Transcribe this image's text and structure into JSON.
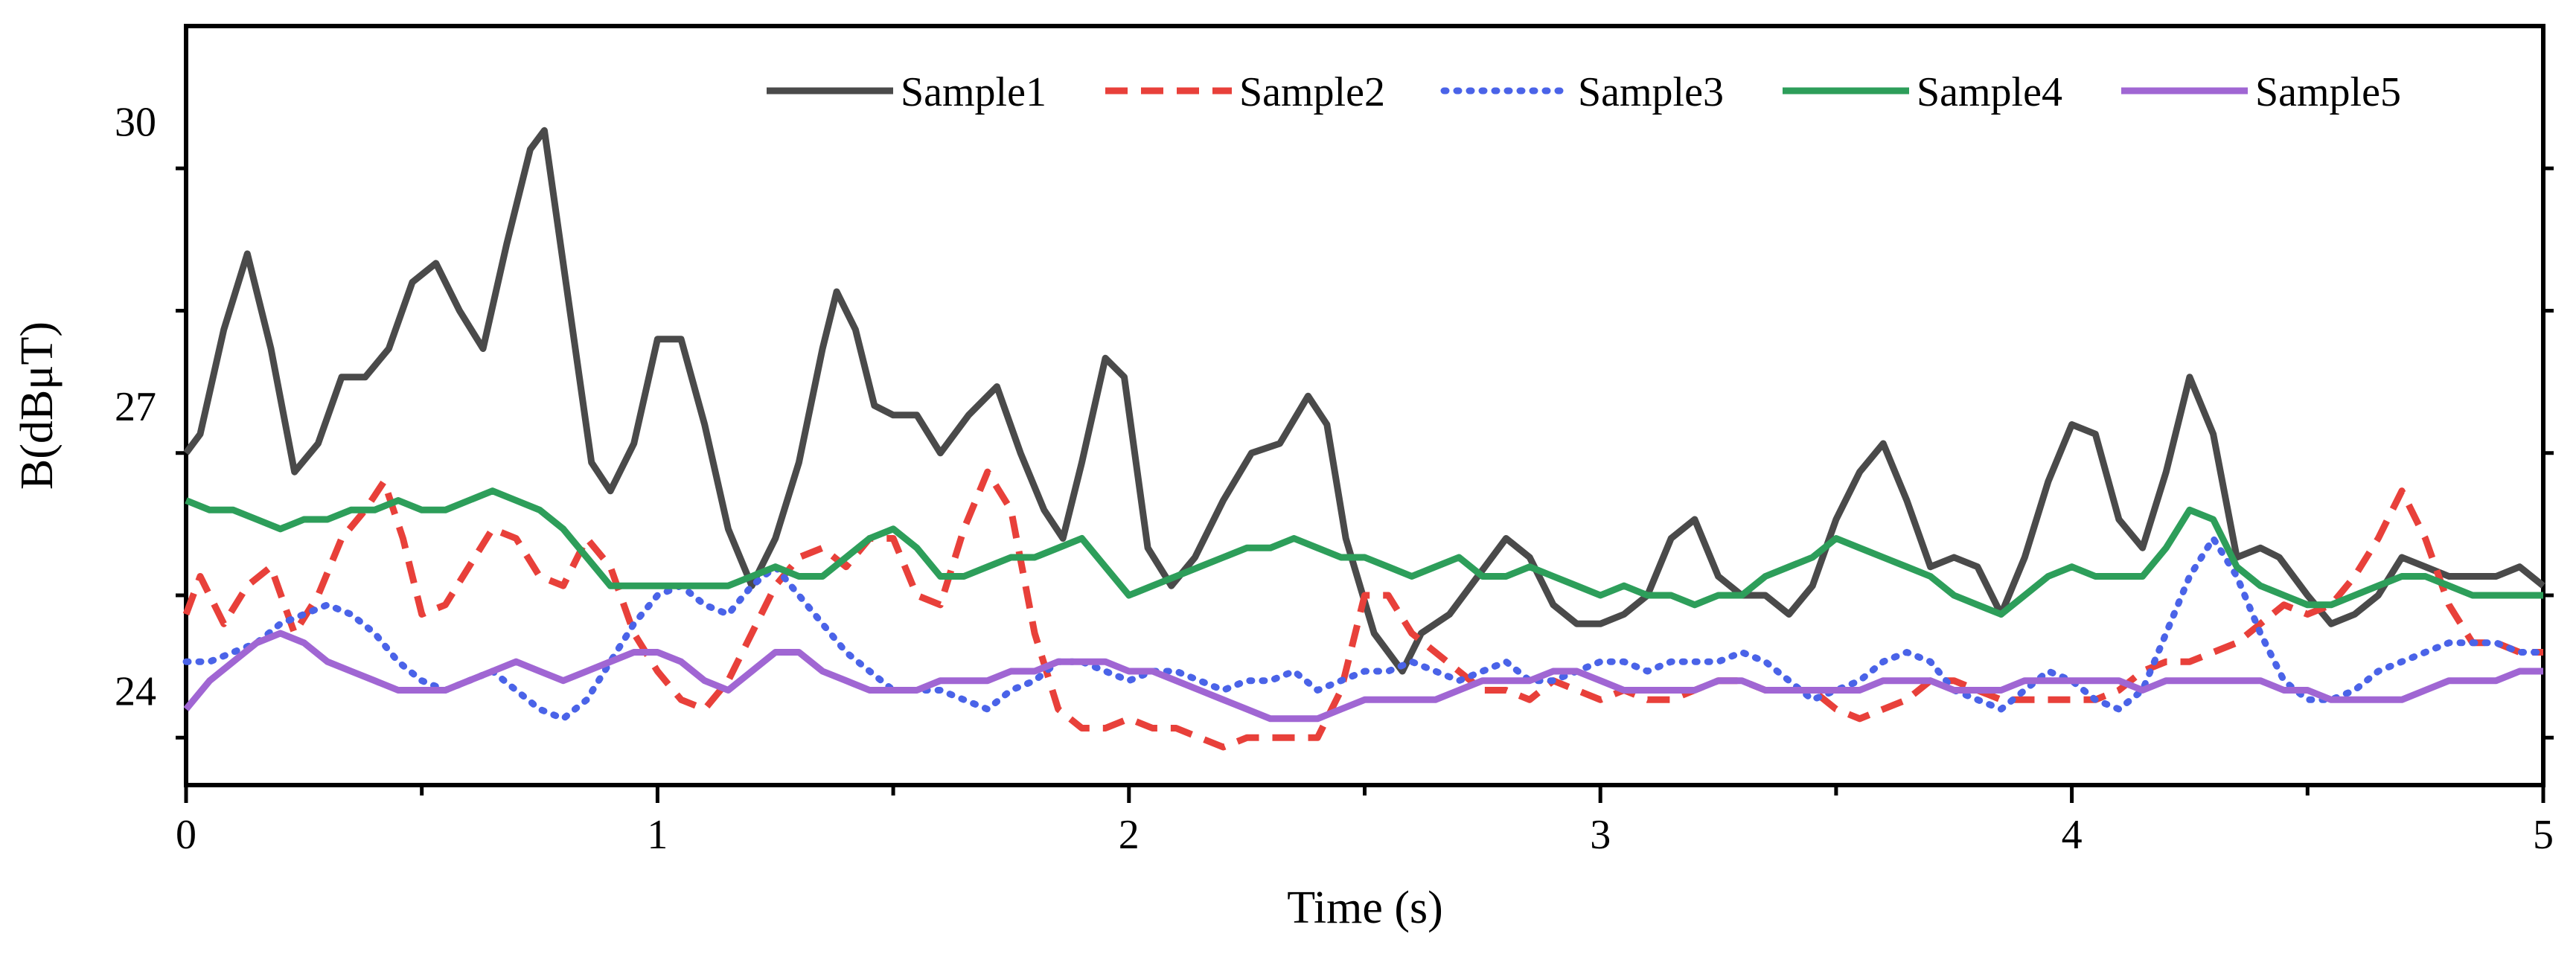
{
  "chart_data": {
    "type": "line",
    "xlabel": "Time (s)",
    "ylabel": "B(dBμT)",
    "xlim": [
      0,
      5
    ],
    "ylim": [
      23.0,
      31.0
    ],
    "xticks": [
      0,
      1,
      2,
      3,
      4,
      5
    ],
    "xtick_labels": [
      "0",
      "1",
      "2",
      "3",
      "4",
      "5"
    ],
    "yticks": [
      24,
      27,
      30
    ],
    "ytick_labels": [
      "24",
      "27",
      "30"
    ],
    "grid": false,
    "legend_position": "top-right",
    "series": [
      {
        "name": "Sample1",
        "color": "#4a4a4a",
        "dash": "solid",
        "x": [
          0,
          0.03,
          0.08,
          0.13,
          0.18,
          0.23,
          0.28,
          0.33,
          0.38,
          0.43,
          0.48,
          0.53,
          0.58,
          0.63,
          0.68,
          0.73,
          0.76,
          0.8,
          0.86,
          0.9,
          0.95,
          1.0,
          1.05,
          1.1,
          1.15,
          1.2,
          1.25,
          1.3,
          1.35,
          1.38,
          1.42,
          1.46,
          1.5,
          1.55,
          1.6,
          1.66,
          1.72,
          1.77,
          1.82,
          1.86,
          1.9,
          1.95,
          1.99,
          2.04,
          2.09,
          2.14,
          2.2,
          2.26,
          2.32,
          2.38,
          2.42,
          2.46,
          2.52,
          2.58,
          2.62,
          2.68,
          2.74,
          2.8,
          2.85,
          2.9,
          2.95,
          3.0,
          3.05,
          3.1,
          3.15,
          3.2,
          3.25,
          3.3,
          3.35,
          3.4,
          3.45,
          3.5,
          3.55,
          3.6,
          3.65,
          3.7,
          3.75,
          3.8,
          3.85,
          3.9,
          3.95,
          4.0,
          4.05,
          4.1,
          4.15,
          4.2,
          4.25,
          4.3,
          4.35,
          4.4,
          4.44,
          4.5,
          4.55,
          4.6,
          4.65,
          4.7,
          4.75,
          4.8,
          4.85,
          4.9,
          4.95,
          5.0
        ],
        "values": [
          26.5,
          26.7,
          27.8,
          28.6,
          27.6,
          26.3,
          26.6,
          27.3,
          27.3,
          27.6,
          28.3,
          28.5,
          28.0,
          27.6,
          28.7,
          29.7,
          29.9,
          28.5,
          26.4,
          26.1,
          26.6,
          27.7,
          27.7,
          26.8,
          25.7,
          25.1,
          25.6,
          26.4,
          27.6,
          28.2,
          27.8,
          27.0,
          26.9,
          26.9,
          26.5,
          26.9,
          27.2,
          26.5,
          25.9,
          25.6,
          26.4,
          27.5,
          27.3,
          25.5,
          25.1,
          25.4,
          26.0,
          26.5,
          26.6,
          27.1,
          26.8,
          25.6,
          24.6,
          24.2,
          24.6,
          24.8,
          25.2,
          25.6,
          25.4,
          24.9,
          24.7,
          24.7,
          24.8,
          25.0,
          25.6,
          25.8,
          25.2,
          25.0,
          25.0,
          24.8,
          25.1,
          25.8,
          26.3,
          26.6,
          26.0,
          25.3,
          25.4,
          25.3,
          24.8,
          25.4,
          26.2,
          26.8,
          26.7,
          25.8,
          25.5,
          26.3,
          27.3,
          26.7,
          25.4,
          25.5,
          25.4,
          25.0,
          24.7,
          24.8,
          25.0,
          25.4,
          25.3,
          25.2,
          25.2,
          25.2,
          25.3,
          25.1
        ]
      },
      {
        "name": "Sample2",
        "color": "#e8403a",
        "dash": "dashed",
        "x": [
          0,
          0.03,
          0.08,
          0.13,
          0.18,
          0.23,
          0.28,
          0.33,
          0.38,
          0.42,
          0.46,
          0.5,
          0.55,
          0.6,
          0.65,
          0.7,
          0.75,
          0.8,
          0.85,
          0.9,
          0.95,
          1.0,
          1.05,
          1.1,
          1.15,
          1.2,
          1.25,
          1.3,
          1.35,
          1.4,
          1.45,
          1.5,
          1.55,
          1.6,
          1.65,
          1.7,
          1.75,
          1.8,
          1.85,
          1.9,
          1.95,
          2.0,
          2.05,
          2.1,
          2.15,
          2.2,
          2.25,
          2.3,
          2.35,
          2.4,
          2.45,
          2.5,
          2.55,
          2.6,
          2.65,
          2.7,
          2.75,
          2.8,
          2.85,
          2.9,
          2.95,
          3.0,
          3.05,
          3.1,
          3.15,
          3.2,
          3.25,
          3.3,
          3.35,
          3.4,
          3.45,
          3.5,
          3.55,
          3.6,
          3.65,
          3.7,
          3.75,
          3.8,
          3.85,
          3.9,
          3.95,
          4.0,
          4.05,
          4.1,
          4.15,
          4.2,
          4.25,
          4.3,
          4.35,
          4.4,
          4.45,
          4.5,
          4.55,
          4.6,
          4.65,
          4.7,
          4.75,
          4.8,
          4.85,
          4.9,
          4.95,
          5.0
        ],
        "values": [
          24.8,
          25.2,
          24.7,
          25.1,
          25.3,
          24.6,
          25.0,
          25.6,
          25.9,
          26.2,
          25.6,
          24.8,
          24.9,
          25.3,
          25.7,
          25.6,
          25.2,
          25.1,
          25.6,
          25.3,
          24.6,
          24.2,
          23.9,
          23.8,
          24.1,
          24.6,
          25.1,
          25.4,
          25.5,
          25.3,
          25.6,
          25.6,
          25.0,
          24.9,
          25.7,
          26.3,
          25.9,
          24.6,
          23.8,
          23.6,
          23.6,
          23.7,
          23.6,
          23.6,
          23.5,
          23.4,
          23.5,
          23.5,
          23.5,
          23.5,
          24.0,
          25.0,
          25.0,
          24.6,
          24.4,
          24.2,
          24.0,
          24.0,
          23.9,
          24.1,
          24.0,
          23.9,
          24.0,
          23.9,
          23.9,
          24.0,
          24.1,
          24.1,
          24.0,
          24.0,
          24.0,
          23.8,
          23.7,
          23.8,
          23.9,
          24.1,
          24.1,
          24.0,
          23.9,
          23.9,
          23.9,
          23.9,
          23.9,
          24.0,
          24.2,
          24.3,
          24.3,
          24.4,
          24.5,
          24.7,
          24.9,
          24.8,
          24.9,
          25.2,
          25.6,
          26.1,
          25.6,
          24.9,
          24.5,
          24.5,
          24.4,
          24.4
        ]
      },
      {
        "name": "Sample3",
        "color": "#4a63e8",
        "dash": "dotted",
        "x": [
          0,
          0.05,
          0.1,
          0.15,
          0.2,
          0.25,
          0.3,
          0.35,
          0.4,
          0.45,
          0.5,
          0.55,
          0.6,
          0.65,
          0.7,
          0.75,
          0.8,
          0.85,
          0.9,
          0.95,
          1.0,
          1.05,
          1.1,
          1.15,
          1.2,
          1.25,
          1.3,
          1.35,
          1.4,
          1.45,
          1.5,
          1.55,
          1.6,
          1.65,
          1.7,
          1.75,
          1.8,
          1.85,
          1.9,
          1.95,
          2.0,
          2.05,
          2.1,
          2.15,
          2.2,
          2.25,
          2.3,
          2.35,
          2.4,
          2.45,
          2.5,
          2.55,
          2.6,
          2.65,
          2.7,
          2.75,
          2.8,
          2.85,
          2.9,
          2.95,
          3.0,
          3.05,
          3.1,
          3.15,
          3.2,
          3.25,
          3.3,
          3.35,
          3.4,
          3.45,
          3.5,
          3.55,
          3.6,
          3.65,
          3.7,
          3.75,
          3.8,
          3.85,
          3.9,
          3.95,
          4.0,
          4.05,
          4.1,
          4.15,
          4.2,
          4.25,
          4.3,
          4.35,
          4.4,
          4.45,
          4.5,
          4.55,
          4.6,
          4.65,
          4.7,
          4.75,
          4.8,
          4.85,
          4.9,
          4.95,
          5.0
        ],
        "values": [
          24.3,
          24.3,
          24.4,
          24.5,
          24.7,
          24.8,
          24.9,
          24.8,
          24.6,
          24.3,
          24.1,
          24.0,
          24.1,
          24.2,
          24.0,
          23.8,
          23.7,
          23.9,
          24.3,
          24.7,
          25.0,
          25.1,
          24.9,
          24.8,
          25.1,
          25.3,
          25.0,
          24.7,
          24.4,
          24.2,
          24.0,
          24.0,
          24.0,
          23.9,
          23.8,
          24.0,
          24.1,
          24.3,
          24.3,
          24.2,
          24.1,
          24.2,
          24.2,
          24.1,
          24.0,
          24.1,
          24.1,
          24.2,
          24.0,
          24.1,
          24.2,
          24.2,
          24.3,
          24.2,
          24.1,
          24.2,
          24.3,
          24.1,
          24.1,
          24.2,
          24.3,
          24.3,
          24.2,
          24.3,
          24.3,
          24.3,
          24.4,
          24.3,
          24.1,
          23.9,
          24.0,
          24.1,
          24.3,
          24.4,
          24.3,
          24.0,
          23.9,
          23.8,
          24.0,
          24.2,
          24.1,
          23.9,
          23.8,
          24.0,
          24.6,
          25.2,
          25.6,
          25.2,
          24.6,
          24.1,
          23.9,
          23.9,
          24.0,
          24.2,
          24.3,
          24.4,
          24.5,
          24.5,
          24.5,
          24.4,
          24.4
        ]
      },
      {
        "name": "Sample4",
        "color": "#2d9e5a",
        "dash": "solid",
        "x": [
          0,
          0.05,
          0.1,
          0.15,
          0.2,
          0.25,
          0.3,
          0.35,
          0.4,
          0.45,
          0.5,
          0.55,
          0.6,
          0.65,
          0.7,
          0.75,
          0.8,
          0.85,
          0.9,
          0.95,
          1.0,
          1.05,
          1.1,
          1.15,
          1.2,
          1.25,
          1.3,
          1.35,
          1.4,
          1.45,
          1.5,
          1.55,
          1.6,
          1.65,
          1.7,
          1.75,
          1.8,
          1.85,
          1.9,
          1.95,
          2.0,
          2.05,
          2.1,
          2.15,
          2.2,
          2.25,
          2.3,
          2.35,
          2.4,
          2.45,
          2.5,
          2.55,
          2.6,
          2.65,
          2.7,
          2.75,
          2.8,
          2.85,
          2.9,
          2.95,
          3.0,
          3.05,
          3.1,
          3.15,
          3.2,
          3.25,
          3.3,
          3.35,
          3.4,
          3.45,
          3.5,
          3.55,
          3.6,
          3.65,
          3.7,
          3.75,
          3.8,
          3.85,
          3.9,
          3.95,
          4.0,
          4.05,
          4.1,
          4.15,
          4.2,
          4.25,
          4.3,
          4.35,
          4.4,
          4.45,
          4.5,
          4.55,
          4.6,
          4.65,
          4.7,
          4.75,
          4.8,
          4.85,
          4.9,
          4.95,
          5.0
        ],
        "values": [
          26.0,
          25.9,
          25.9,
          25.8,
          25.7,
          25.8,
          25.8,
          25.9,
          25.9,
          26.0,
          25.9,
          25.9,
          26.0,
          26.1,
          26.0,
          25.9,
          25.7,
          25.4,
          25.1,
          25.1,
          25.1,
          25.1,
          25.1,
          25.1,
          25.2,
          25.3,
          25.2,
          25.2,
          25.4,
          25.6,
          25.7,
          25.5,
          25.2,
          25.2,
          25.3,
          25.4,
          25.4,
          25.5,
          25.6,
          25.3,
          25.0,
          25.1,
          25.2,
          25.3,
          25.4,
          25.5,
          25.5,
          25.6,
          25.5,
          25.4,
          25.4,
          25.3,
          25.2,
          25.3,
          25.4,
          25.2,
          25.2,
          25.3,
          25.2,
          25.1,
          25.0,
          25.1,
          25.0,
          25.0,
          24.9,
          25.0,
          25.0,
          25.2,
          25.3,
          25.4,
          25.6,
          25.5,
          25.4,
          25.3,
          25.2,
          25.0,
          24.9,
          24.8,
          25.0,
          25.2,
          25.3,
          25.2,
          25.2,
          25.2,
          25.5,
          25.9,
          25.8,
          25.3,
          25.1,
          25.0,
          24.9,
          24.9,
          25.0,
          25.1,
          25.2,
          25.2,
          25.1,
          25.0,
          25.0,
          25.0,
          25.0
        ]
      },
      {
        "name": "Sample5",
        "color": "#a066d3",
        "dash": "solid",
        "x": [
          0,
          0.05,
          0.1,
          0.15,
          0.2,
          0.25,
          0.3,
          0.35,
          0.4,
          0.45,
          0.5,
          0.55,
          0.6,
          0.65,
          0.7,
          0.75,
          0.8,
          0.85,
          0.9,
          0.95,
          1.0,
          1.05,
          1.1,
          1.15,
          1.2,
          1.25,
          1.3,
          1.35,
          1.4,
          1.45,
          1.5,
          1.55,
          1.6,
          1.65,
          1.7,
          1.75,
          1.8,
          1.85,
          1.9,
          1.95,
          2.0,
          2.05,
          2.1,
          2.15,
          2.2,
          2.25,
          2.3,
          2.35,
          2.4,
          2.45,
          2.5,
          2.55,
          2.6,
          2.65,
          2.7,
          2.75,
          2.8,
          2.85,
          2.9,
          2.95,
          3.0,
          3.05,
          3.1,
          3.15,
          3.2,
          3.25,
          3.3,
          3.35,
          3.4,
          3.45,
          3.5,
          3.55,
          3.6,
          3.65,
          3.7,
          3.75,
          3.8,
          3.85,
          3.9,
          3.95,
          4.0,
          4.05,
          4.1,
          4.15,
          4.2,
          4.25,
          4.3,
          4.35,
          4.4,
          4.45,
          4.5,
          4.55,
          4.6,
          4.65,
          4.7,
          4.75,
          4.8,
          4.85,
          4.9,
          4.95,
          5.0
        ],
        "values": [
          23.8,
          24.1,
          24.3,
          24.5,
          24.6,
          24.5,
          24.3,
          24.2,
          24.1,
          24.0,
          24.0,
          24.0,
          24.1,
          24.2,
          24.3,
          24.2,
          24.1,
          24.2,
          24.3,
          24.4,
          24.4,
          24.3,
          24.1,
          24.0,
          24.2,
          24.4,
          24.4,
          24.2,
          24.1,
          24.0,
          24.0,
          24.0,
          24.1,
          24.1,
          24.1,
          24.2,
          24.2,
          24.3,
          24.3,
          24.3,
          24.2,
          24.2,
          24.1,
          24.0,
          23.9,
          23.8,
          23.7,
          23.7,
          23.7,
          23.8,
          23.9,
          23.9,
          23.9,
          23.9,
          24.0,
          24.1,
          24.1,
          24.1,
          24.2,
          24.2,
          24.1,
          24.0,
          24.0,
          24.0,
          24.0,
          24.1,
          24.1,
          24.0,
          24.0,
          24.0,
          24.0,
          24.0,
          24.1,
          24.1,
          24.1,
          24.0,
          24.0,
          24.0,
          24.1,
          24.1,
          24.1,
          24.1,
          24.1,
          24.0,
          24.1,
          24.1,
          24.1,
          24.1,
          24.1,
          24.0,
          24.0,
          23.9,
          23.9,
          23.9,
          23.9,
          24.0,
          24.1,
          24.1,
          24.1,
          24.2,
          24.2
        ]
      }
    ]
  }
}
